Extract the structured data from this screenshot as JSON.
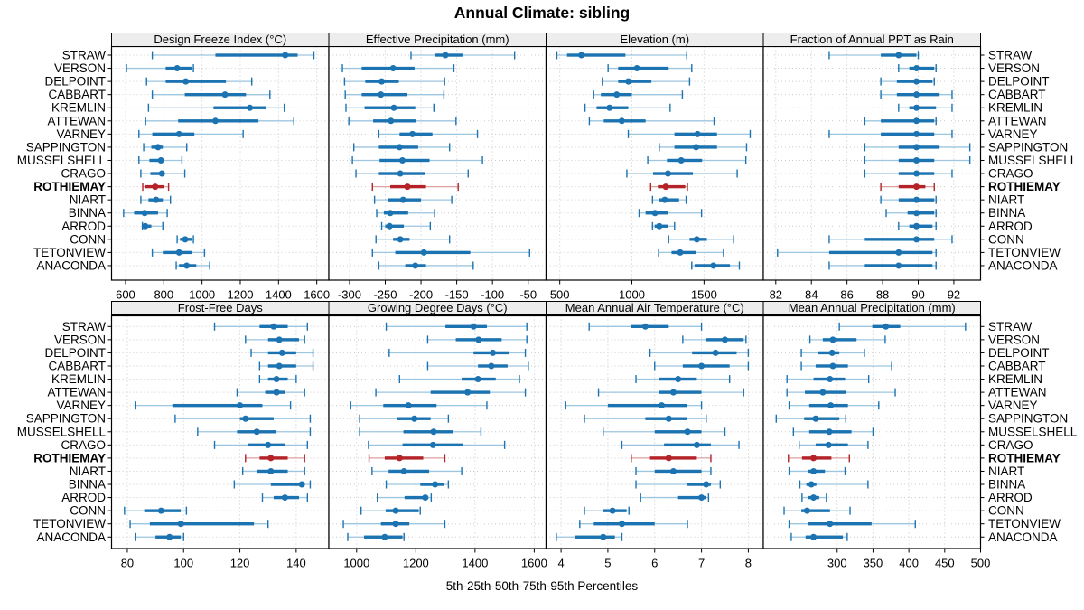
{
  "title": "Annual Climate: sibling",
  "footer": "5th-25th-50th-75th-95th Percentiles",
  "colors": {
    "series": "#1c73b1",
    "series_light": "#9dc6e0",
    "highlight": "#b42328",
    "highlight_light": "#dfa0a2",
    "grid": "#c6c6c6",
    "row_grid": "#cccccc",
    "strip_bg": "#ededed",
    "border": "#000000",
    "background": "#ffffff"
  },
  "chart_data": {
    "type": "dotplot-percentile-trellis",
    "legend_position": "none",
    "grid": true,
    "percentiles": [
      "5th",
      "25th",
      "50th",
      "75th",
      "95th"
    ],
    "categories": [
      "STRAW",
      "VERSON",
      "DELPOINT",
      "CABBART",
      "KREMLIN",
      "ATTEWAN",
      "VARNEY",
      "SAPPINGTON",
      "MUSSELSHELL",
      "CRAGO",
      "ROTHIEMAY",
      "NIART",
      "BINNA",
      "ARROD",
      "CONN",
      "TETONVIEW",
      "ANACONDA"
    ],
    "highlight_category": "ROTHIEMAY",
    "panels": [
      {
        "title": "Design Freeze Index (°C)",
        "grid_row": 0,
        "grid_col": 0,
        "domain": [
          527,
          1663
        ],
        "ticks": [
          600,
          800,
          1000,
          1200,
          1400,
          1600
        ],
        "values": [
          [
            740,
            1070,
            1435,
            1500,
            1585
          ],
          [
            605,
            810,
            870,
            945,
            955
          ],
          [
            710,
            810,
            915,
            1125,
            1260
          ],
          [
            740,
            910,
            1120,
            1230,
            1355
          ],
          [
            720,
            1060,
            1250,
            1335,
            1430
          ],
          [
            705,
            875,
            1070,
            1295,
            1480
          ],
          [
            670,
            740,
            880,
            960,
            1215
          ],
          [
            695,
            735,
            770,
            795,
            920
          ],
          [
            670,
            725,
            785,
            795,
            895
          ],
          [
            680,
            730,
            790,
            800,
            910
          ],
          [
            690,
            700,
            755,
            800,
            825
          ],
          [
            680,
            720,
            760,
            795,
            835
          ],
          [
            590,
            645,
            700,
            770,
            818
          ],
          [
            688,
            692,
            703,
            735,
            795
          ],
          [
            870,
            885,
            912,
            950,
            955
          ],
          [
            740,
            795,
            880,
            950,
            1013
          ],
          [
            865,
            880,
            920,
            970,
            1040
          ]
        ]
      },
      {
        "title": "Effective Precipitation (mm)",
        "grid_row": 0,
        "grid_col": 1,
        "domain": [
          -329,
          -25
        ],
        "ticks": [
          -300,
          -250,
          -200,
          -150,
          -100,
          -50
        ],
        "values": [
          [
            -214,
            -181,
            -166,
            -142,
            -69
          ],
          [
            -310,
            -283,
            -239,
            -209,
            -154
          ],
          [
            -307,
            -278,
            -255,
            -231,
            -167
          ],
          [
            -306,
            -283,
            -256,
            -219,
            -168
          ],
          [
            -305,
            -279,
            -238,
            -208,
            -182
          ],
          [
            -301,
            -267,
            -242,
            -207,
            -151
          ],
          [
            -259,
            -230,
            -212,
            -184,
            -121
          ],
          [
            -294,
            -259,
            -230,
            -204,
            -160
          ],
          [
            -296,
            -258,
            -226,
            -188,
            -114
          ],
          [
            -291,
            -259,
            -229,
            -195,
            -134
          ],
          [
            -268,
            -243,
            -219,
            -193,
            -148
          ],
          [
            -265,
            -246,
            -225,
            -200,
            -157
          ],
          [
            -262,
            -252,
            -243,
            -218,
            -181
          ],
          [
            -255,
            -250,
            -244,
            -224,
            -187
          ],
          [
            -263,
            -239,
            -229,
            -216,
            -160
          ],
          [
            -268,
            -236,
            -196,
            -131,
            -48
          ],
          [
            -259,
            -222,
            -208,
            -193,
            -127
          ]
        ]
      },
      {
        "title": "Elevation (m)",
        "grid_row": 0,
        "grid_col": 2,
        "domain": [
          405,
          1911
        ],
        "ticks": [
          500,
          1000,
          1500
        ],
        "values": [
          [
            480,
            550,
            650,
            955,
            1380
          ],
          [
            835,
            905,
            1035,
            1255,
            1415
          ],
          [
            795,
            905,
            975,
            1135,
            1400
          ],
          [
            735,
            785,
            895,
            1000,
            1350
          ],
          [
            675,
            755,
            845,
            975,
            1265
          ],
          [
            705,
            805,
            930,
            1095,
            1570
          ],
          [
            975,
            1295,
            1455,
            1590,
            1820
          ],
          [
            1190,
            1295,
            1445,
            1590,
            1795
          ],
          [
            1110,
            1243,
            1342,
            1487,
            1790
          ],
          [
            965,
            1147,
            1250,
            1423,
            1730
          ],
          [
            1130,
            1180,
            1235,
            1370,
            1385
          ],
          [
            1143,
            1190,
            1228,
            1327,
            1376
          ],
          [
            1050,
            1095,
            1160,
            1253,
            1483
          ],
          [
            1143,
            1158,
            1190,
            1253,
            1296
          ],
          [
            1255,
            1400,
            1450,
            1520,
            1705
          ],
          [
            1185,
            1275,
            1335,
            1445,
            1635
          ],
          [
            1415,
            1435,
            1565,
            1680,
            1745
          ]
        ]
      },
      {
        "title": "Fraction of Annual PPT as Rain",
        "grid_row": 0,
        "grid_col": 3,
        "domain": [
          81.3,
          93.5
        ],
        "ticks": [
          82,
          84,
          86,
          88,
          90,
          92
        ],
        "values": [
          [
            85.0,
            87.9,
            88.9,
            89.9,
            90.0
          ],
          [
            88.9,
            89.5,
            89.9,
            90.9,
            91.0
          ],
          [
            87.9,
            88.8,
            89.9,
            90.8,
            90.9
          ],
          [
            87.9,
            88.8,
            89.9,
            91.2,
            91.9
          ],
          [
            88.9,
            89.5,
            89.9,
            91.0,
            91.9
          ],
          [
            87.0,
            87.9,
            89.9,
            90.9,
            91.0
          ],
          [
            85.0,
            87.9,
            89.9,
            90.9,
            91.9
          ],
          [
            87.0,
            88.9,
            89.9,
            91.2,
            92.9
          ],
          [
            87.0,
            88.9,
            89.9,
            90.9,
            92.9
          ],
          [
            87.0,
            88.9,
            89.9,
            90.9,
            91.9
          ],
          [
            87.9,
            88.9,
            89.9,
            90.4,
            90.9
          ],
          [
            87.9,
            88.9,
            89.9,
            90.9,
            91.0
          ],
          [
            88.2,
            89.4,
            89.9,
            90.9,
            91.0
          ],
          [
            88.9,
            89.5,
            89.9,
            90.8,
            91.0
          ],
          [
            85.0,
            87.0,
            89.9,
            90.9,
            91.9
          ],
          [
            82.1,
            85.0,
            88.9,
            90.8,
            91.0
          ],
          [
            85.0,
            87.0,
            88.9,
            90.8,
            91.0
          ]
        ]
      },
      {
        "title": "Frost-Free Days",
        "grid_row": 1,
        "grid_col": 0,
        "domain": [
          74.4,
          151.6
        ],
        "ticks": [
          80,
          100,
          120,
          140
        ],
        "values": [
          [
            111,
            127,
            132,
            137,
            144
          ],
          [
            122,
            130,
            134,
            141,
            143
          ],
          [
            124,
            130,
            135,
            140,
            146
          ],
          [
            127,
            130,
            134,
            140,
            146
          ],
          [
            127,
            130,
            133,
            137,
            140
          ],
          [
            119,
            129,
            133,
            136,
            143
          ],
          [
            83,
            96,
            120,
            128,
            138
          ],
          [
            97,
            120,
            122,
            132,
            145
          ],
          [
            105,
            119,
            126,
            133,
            145
          ],
          [
            111,
            123,
            130,
            136,
            144
          ],
          [
            122,
            127,
            131,
            137,
            143
          ],
          [
            121,
            126,
            131,
            137,
            143
          ],
          [
            118,
            131,
            142,
            143,
            145
          ],
          [
            128,
            132,
            136,
            141,
            144
          ],
          [
            79,
            86,
            92,
            99,
            101
          ],
          [
            81,
            88,
            99,
            125,
            130
          ],
          [
            83,
            90,
            95,
            99,
            100
          ]
        ]
      },
      {
        "title": "Growing Degree Days (°C)",
        "grid_row": 1,
        "grid_col": 1,
        "domain": [
          906,
          1640
        ],
        "ticks": [
          1000,
          1200,
          1400,
          1600
        ],
        "values": [
          [
            1100,
            1300,
            1395,
            1440,
            1575
          ],
          [
            1240,
            1335,
            1412,
            1490,
            1575
          ],
          [
            1110,
            1395,
            1460,
            1515,
            1570
          ],
          [
            1240,
            1410,
            1455,
            1510,
            1580
          ],
          [
            1145,
            1355,
            1410,
            1470,
            1550
          ],
          [
            1065,
            1250,
            1375,
            1450,
            1570
          ],
          [
            980,
            1090,
            1175,
            1270,
            1440
          ],
          [
            1010,
            1135,
            1195,
            1250,
            1310
          ],
          [
            1010,
            1158,
            1260,
            1325,
            1420
          ],
          [
            1040,
            1155,
            1258,
            1358,
            1500
          ],
          [
            1042,
            1095,
            1145,
            1225,
            1298
          ],
          [
            1052,
            1108,
            1160,
            1245,
            1355
          ],
          [
            1100,
            1215,
            1265,
            1295,
            1310
          ],
          [
            1070,
            1162,
            1232,
            1242,
            1252
          ],
          [
            1015,
            1098,
            1132,
            1210,
            1215
          ],
          [
            955,
            1082,
            1132,
            1178,
            1298
          ],
          [
            970,
            1025,
            1095,
            1155,
            1160
          ]
        ]
      },
      {
        "title": "Mean Annual Air Temperature (°C)",
        "grid_row": 1,
        "grid_col": 2,
        "domain": [
          3.68,
          8.32
        ],
        "ticks": [
          4,
          5,
          6,
          7,
          8
        ],
        "values": [
          [
            4.6,
            5.5,
            5.8,
            6.3,
            7.0
          ],
          [
            6.6,
            7.1,
            7.5,
            7.9,
            7.95
          ],
          [
            5.9,
            6.8,
            7.3,
            7.75,
            8.0
          ],
          [
            6.0,
            6.6,
            7.0,
            7.6,
            8.0
          ],
          [
            5.6,
            6.1,
            6.5,
            6.9,
            7.6
          ],
          [
            4.8,
            6.1,
            6.4,
            7.0,
            7.9
          ],
          [
            4.1,
            5.0,
            6.15,
            6.7,
            7.0
          ],
          [
            4.5,
            5.8,
            6.3,
            6.7,
            7.1
          ],
          [
            4.9,
            6.0,
            6.7,
            7.0,
            7.5
          ],
          [
            5.3,
            6.2,
            6.9,
            7.2,
            7.8
          ],
          [
            5.5,
            5.9,
            6.3,
            6.9,
            7.2
          ],
          [
            5.6,
            6.0,
            6.4,
            7.0,
            7.2
          ],
          [
            5.6,
            6.7,
            7.1,
            7.2,
            7.4
          ],
          [
            5.7,
            6.5,
            7.0,
            7.1,
            7.15
          ],
          [
            4.5,
            4.9,
            5.1,
            5.4,
            5.45
          ],
          [
            4.4,
            4.7,
            5.3,
            6.0,
            6.7
          ],
          [
            3.9,
            4.3,
            4.9,
            5.15,
            5.3
          ]
        ]
      },
      {
        "title": "Mean Annual Precipitation (mm)",
        "grid_row": 1,
        "grid_col": 3,
        "domain": [
          197,
          500
        ],
        "ticks": [
          300,
          350,
          400,
          450,
          500
        ],
        "values": [
          [
            303,
            349,
            368,
            388,
            479
          ],
          [
            262,
            280,
            294,
            327,
            367
          ],
          [
            250,
            273,
            293,
            303,
            338
          ],
          [
            250,
            270,
            294,
            315,
            376
          ],
          [
            230,
            267,
            290,
            311,
            344
          ],
          [
            230,
            255,
            280,
            313,
            381
          ],
          [
            233,
            261,
            291,
            315,
            358
          ],
          [
            215,
            254,
            270,
            303,
            312
          ],
          [
            239,
            261,
            289,
            320,
            350
          ],
          [
            247,
            270,
            288,
            315,
            343
          ],
          [
            232,
            251,
            267,
            292,
            317
          ],
          [
            233,
            260,
            267,
            283,
            311
          ],
          [
            248,
            257,
            264,
            271,
            343
          ],
          [
            251,
            260,
            267,
            275,
            285
          ],
          [
            226,
            250,
            258,
            290,
            318
          ],
          [
            233,
            260,
            290,
            348,
            409
          ],
          [
            236,
            256,
            267,
            308,
            314
          ]
        ]
      }
    ]
  }
}
